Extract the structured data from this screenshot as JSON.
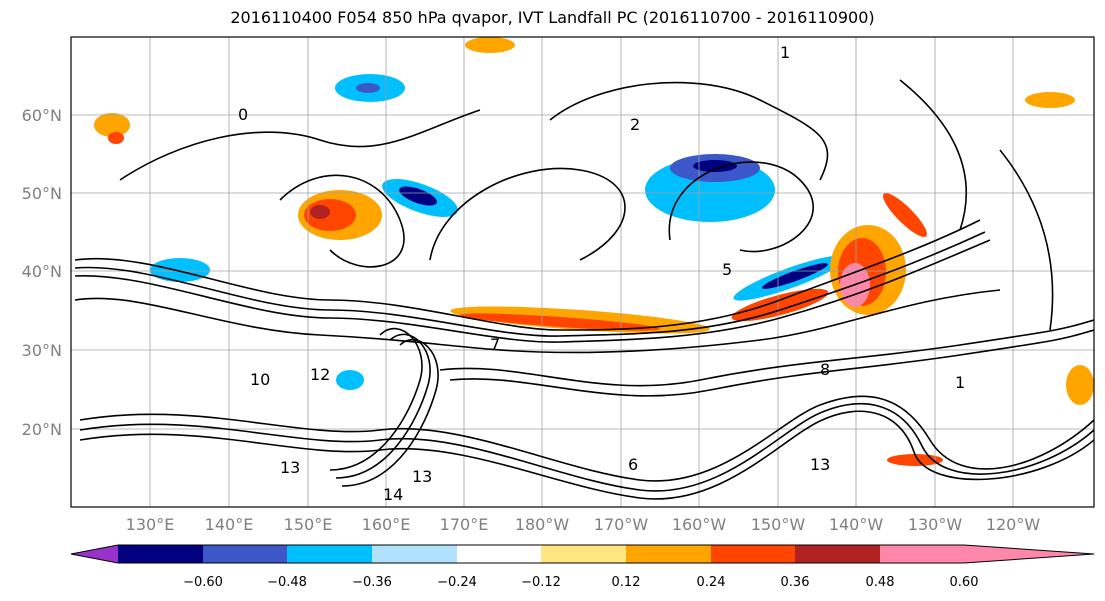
{
  "title": "2016110400 F054 850 hPa qvapor, IVT Landfall PC (2016110700 - 2016110900)",
  "lat_labels": [
    "60°N",
    "50°N",
    "40°N",
    "30°N",
    "20°N"
  ],
  "lon_labels": [
    "130°E",
    "140°E",
    "150°E",
    "160°E",
    "170°E",
    "180°W",
    "170°W",
    "160°W",
    "150°W",
    "140°W",
    "130°W",
    "120°W"
  ],
  "colorbar": {
    "colors": [
      "#9932cc",
      "#000080",
      "#3c58c8",
      "#00bfff",
      "#b0e2ff",
      "#ffffff",
      "#ffe680",
      "#ffa500",
      "#ff4500",
      "#b22222",
      "#ff88aa"
    ],
    "tick_labels": [
      "−0.60",
      "−0.48",
      "−0.36",
      "−0.24",
      "−0.12",
      "0.12",
      "0.24",
      "0.36",
      "0.48",
      "0.60"
    ]
  },
  "contour_labels": [
    "13",
    "13",
    "14",
    "13",
    "12",
    "10",
    "5",
    "2",
    "1",
    "0",
    "7",
    "8",
    "6",
    "1"
  ]
}
